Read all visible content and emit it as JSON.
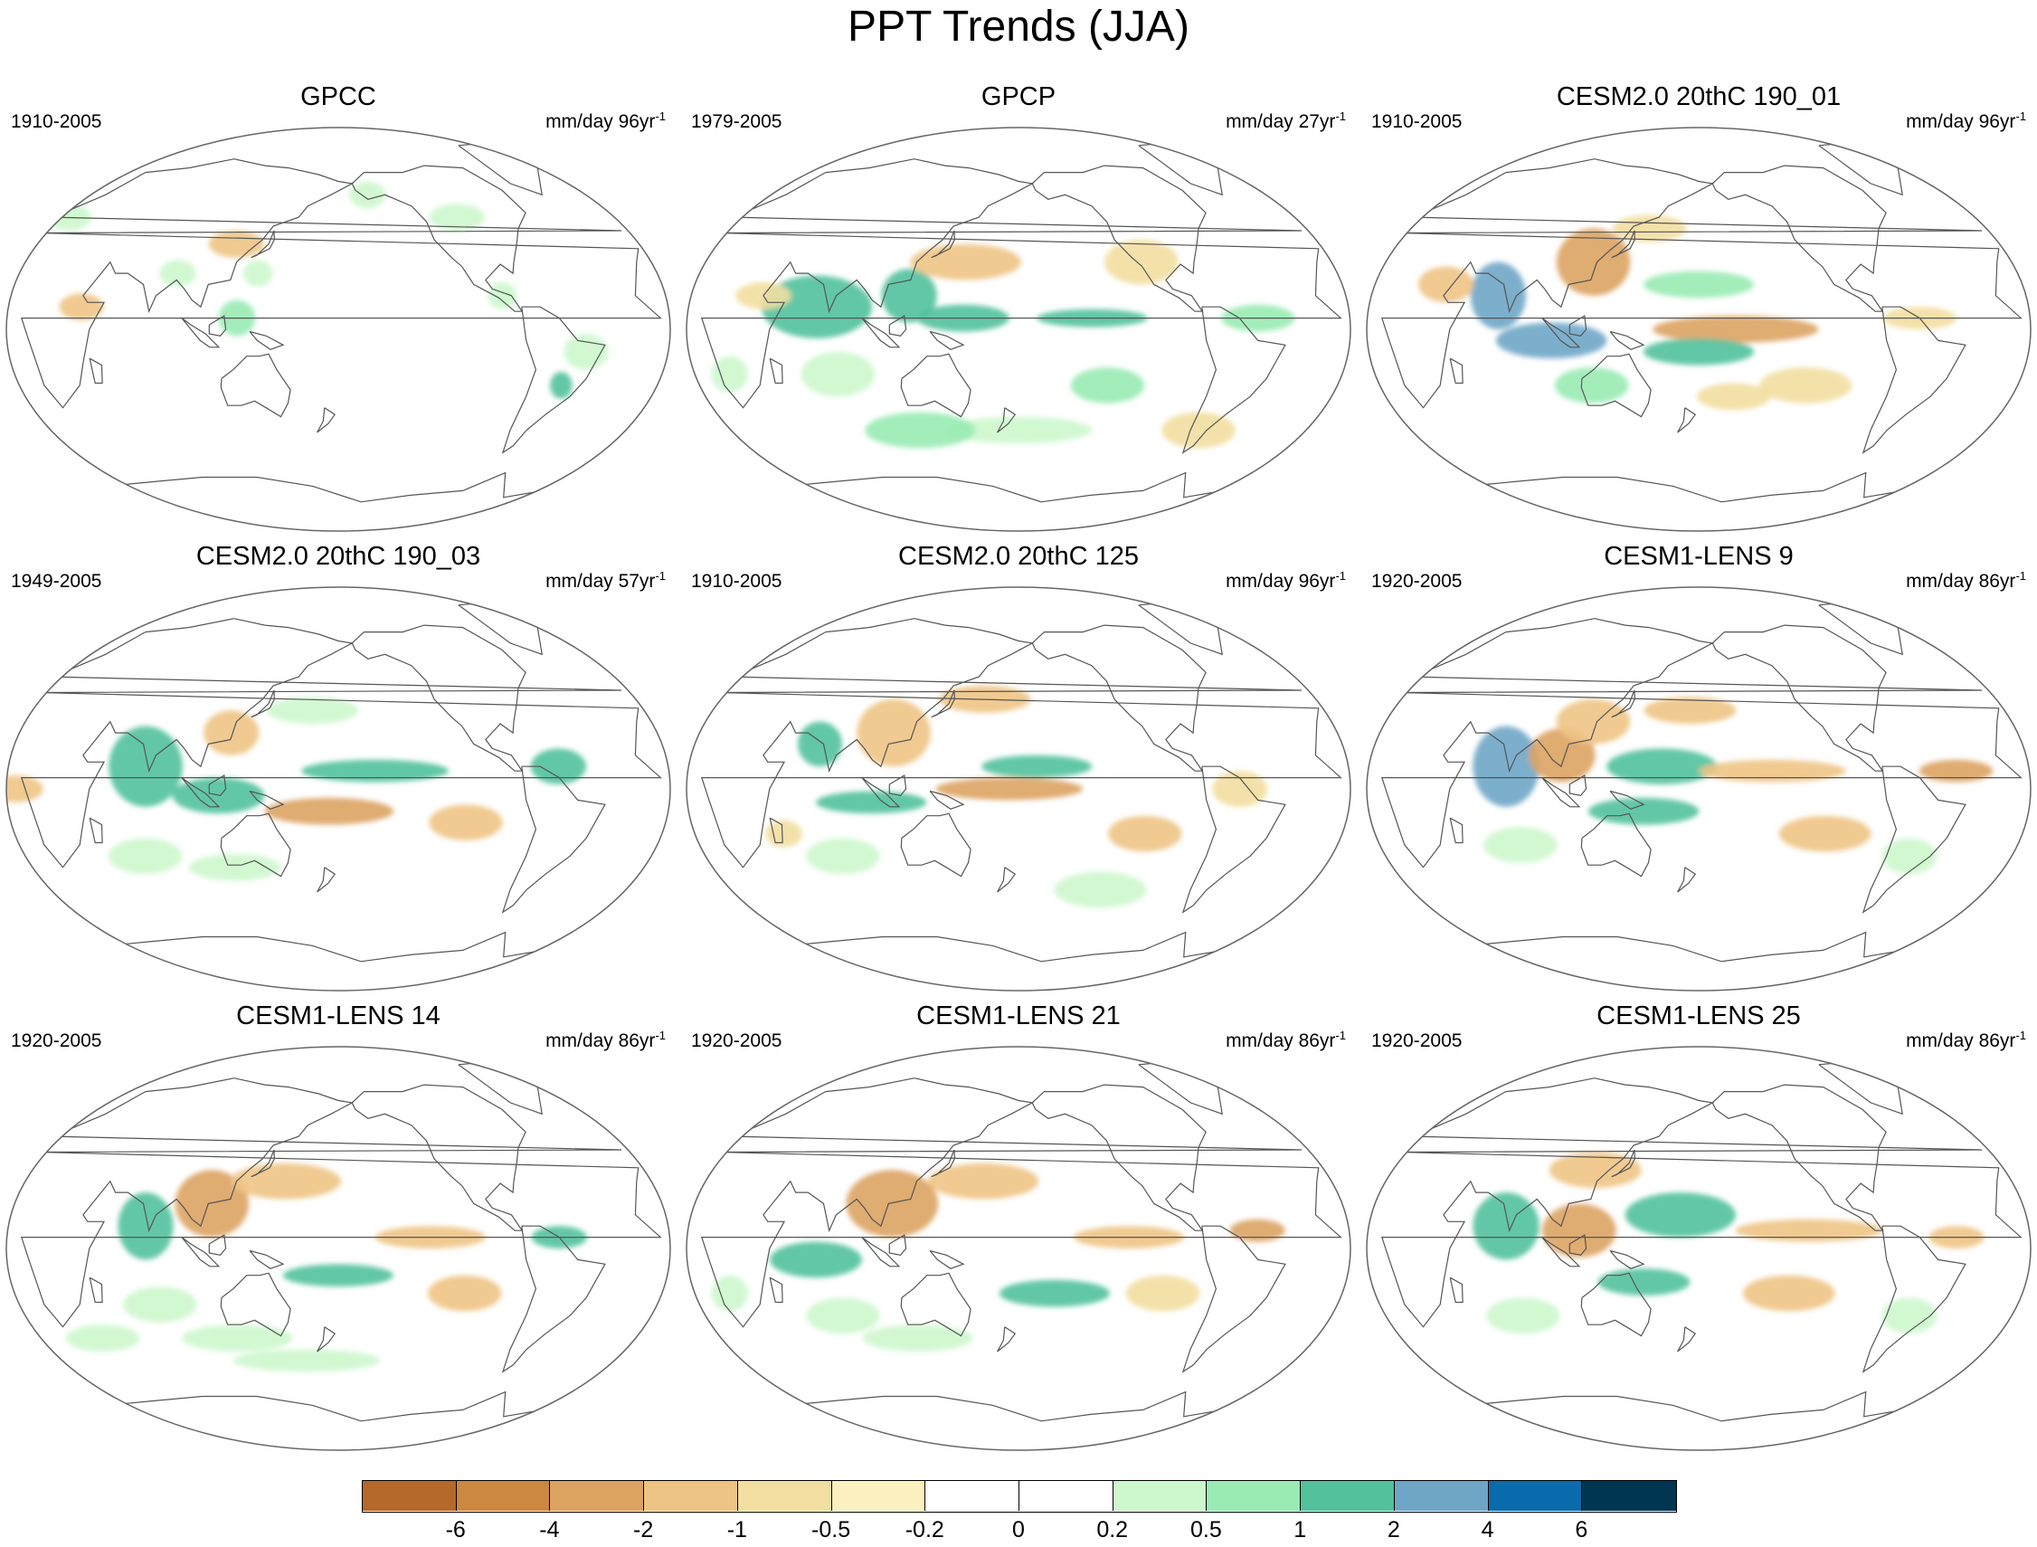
{
  "title": "PPT Trends (JJA)",
  "panels": [
    {
      "title": "GPCC",
      "period": "1910-2005",
      "units": "mm/day 96yr",
      "units_sup": "-1"
    },
    {
      "title": "GPCP",
      "period": "1979-2005",
      "units": "mm/day 27yr",
      "units_sup": "-1"
    },
    {
      "title": "CESM2.0 20thC 190_01",
      "period": "1910-2005",
      "units": "mm/day 96yr",
      "units_sup": "-1"
    },
    {
      "title": "CESM2.0 20thC 190_03",
      "period": "1949-2005",
      "units": "mm/day 57yr",
      "units_sup": "-1"
    },
    {
      "title": "CESM2.0 20thC 125",
      "period": "1910-2005",
      "units": "mm/day 96yr",
      "units_sup": "-1"
    },
    {
      "title": "CESM1-LENS 9",
      "period": "1920-2005",
      "units": "mm/day 86yr",
      "units_sup": "-1"
    },
    {
      "title": "CESM1-LENS 14",
      "period": "1920-2005",
      "units": "mm/day 86yr",
      "units_sup": "-1"
    },
    {
      "title": "CESM1-LENS 21",
      "period": "1920-2005",
      "units": "mm/day 86yr",
      "units_sup": "-1"
    },
    {
      "title": "CESM1-LENS 25",
      "period": "1920-2005",
      "units": "mm/day 86yr",
      "units_sup": "-1"
    }
  ],
  "colorbar": {
    "labels": [
      "-6",
      "-4",
      "-2",
      "-1",
      "-0.5",
      "-0.2",
      "0",
      "0.2",
      "0.5",
      "1",
      "2",
      "4",
      "6"
    ],
    "colors": [
      "#b5692a",
      "#cc8740",
      "#dca363",
      "#eec484",
      "#f2dea0",
      "#fbf1c0",
      "#ffffff",
      "#ffffff",
      "#cdf7cd",
      "#99ebb3",
      "#52c19c",
      "#6fa6c6",
      "#0a6cac",
      "#013652"
    ]
  }
}
